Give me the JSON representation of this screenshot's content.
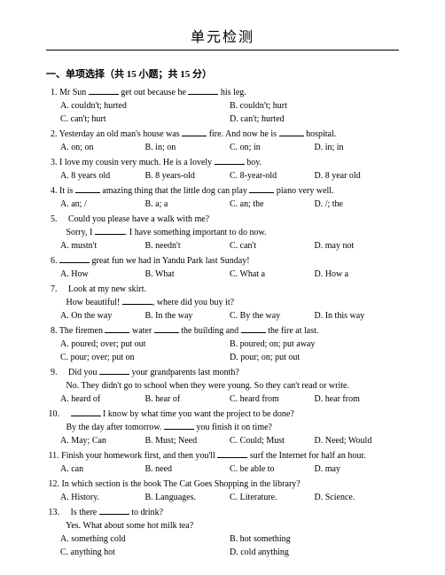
{
  "title": "单元检测",
  "section": "一、单项选择（共 15 小题；共 15 分）",
  "q1": {
    "t1": "  1. Mr Sun ",
    "t2": " get out because he ",
    "t3": " his leg.",
    "a": "A. couldn't; hurted",
    "b": "B. couldn't; hurt",
    "c": "C. can't; hurt",
    "d": "D. can't; hurted"
  },
  "q2": {
    "t1": "  2. Yesterday an old man's house was ",
    "t2": " fire. And now he is ",
    "t3": " hospital.",
    "a": "A. on; on",
    "b": "B. in; on",
    "c": "C. on; in",
    "d": "D. in; in"
  },
  "q3": {
    "t1": "  3. I love my cousin very much. He is a lovely ",
    "t2": " boy.",
    "a": "A. 8 years old",
    "b": "B. 8 years-old",
    "c": "C. 8-year-old",
    "d": "D. 8 year old"
  },
  "q4": {
    "t1": "  4. It is ",
    "t2": " amazing thing that the little dog can play ",
    "t3": " piano very well.",
    "a": "A. an; /",
    "b": "B. a; a",
    "c": "C. an; the",
    "d": "D. /; the"
  },
  "q5": {
    "l1a": "  5.     Could you please have a walk with me?",
    "l2a": "         Sorry, I ",
    "l2b": ". I have something important to do now.",
    "a": "A. mustn't",
    "b": "B. needn't",
    "c": "C. can't",
    "d": "D. may not"
  },
  "q6": {
    "t1": "  6. ",
    "t2": " great fun we had in Yandu Park last Sunday!",
    "a": "A. How",
    "b": "B. What",
    "c": "C. What a",
    "d": "D. How a"
  },
  "q7": {
    "l1": "  7.     Look at my new skirt.",
    "l2a": "         How beautiful! ",
    "l2b": ", where did you buy it?",
    "a": "A. On the way",
    "b": "B. In the way",
    "c": "C. By the way",
    "d": "D. In this way"
  },
  "q8": {
    "t1": "  8. The firemen ",
    "t2": " water ",
    "t3": " the building and ",
    "t4": " the fire at last.",
    "a": "A. poured; over; put out",
    "b": "B. poured; on; put away",
    "c": "C. pour; over; put on",
    "d": "D. pour; on; put out"
  },
  "q9": {
    "l1a": "  9.     Did you ",
    "l1b": " your grandparents last month?",
    "l2": "         No. They didn't go to school when they were young. So they can't read or write.",
    "a": "A. heard of",
    "b": "B. hear of",
    "c": "C. heard from",
    "d": "D. hear from"
  },
  "q10": {
    "l1a": " 10.     ",
    "l1b": " I know by what time you want the project to be done?",
    "l2a": "         By the day after tomorrow. ",
    "l2b": " you finish it on time?",
    "a": "A. May; Can",
    "b": "B. Must; Need",
    "c": "C. Could; Must",
    "d": "D. Need; Would"
  },
  "q11": {
    "t1": " 11. Finish your homework first, and then you'll ",
    "t2": " surf the Internet for half an hour.",
    "a": "A. can",
    "b": "B. need",
    "c": "C. be able to",
    "d": "D. may"
  },
  "q12": {
    "t1": " 12. In which section is the book The Cat Goes Shopping in the library?",
    "a": "A. History.",
    "b": "B. Languages.",
    "c": "C. Literature.",
    "d": "D. Science."
  },
  "q13": {
    "l1a": " 13.     Is there ",
    "l1b": " to drink?",
    "l2": "         Yes. What about some hot milk tea?",
    "a": "A. something cold",
    "b": "B. hot something",
    "c": "C. anything hot",
    "d": "D. cold anything"
  }
}
